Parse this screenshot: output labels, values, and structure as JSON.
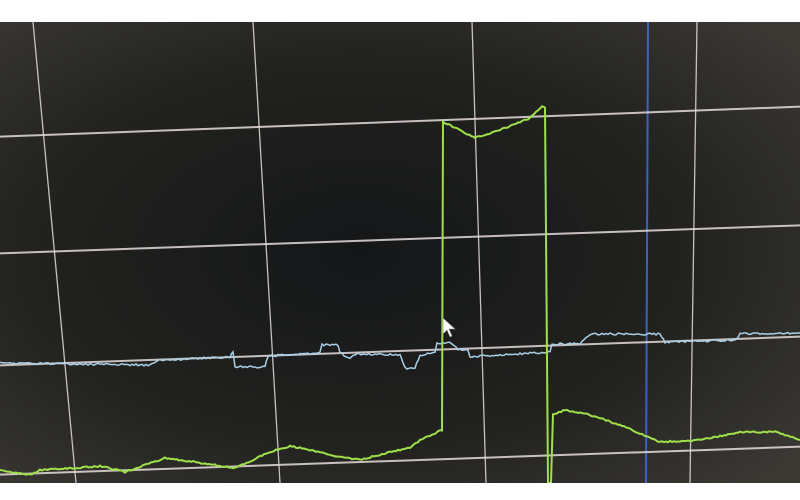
{
  "scene": {
    "subject": "oscilloscope-screen-photo",
    "colors": {
      "background": "#24231f",
      "grid": "#e6dcdc",
      "marker": "#3f6fd8",
      "trace_green": "#9ee04a",
      "trace_blue": "#a9cfe6",
      "border": "#ffffff"
    },
    "icons": [
      "mouse-cursor-icon"
    ]
  }
}
